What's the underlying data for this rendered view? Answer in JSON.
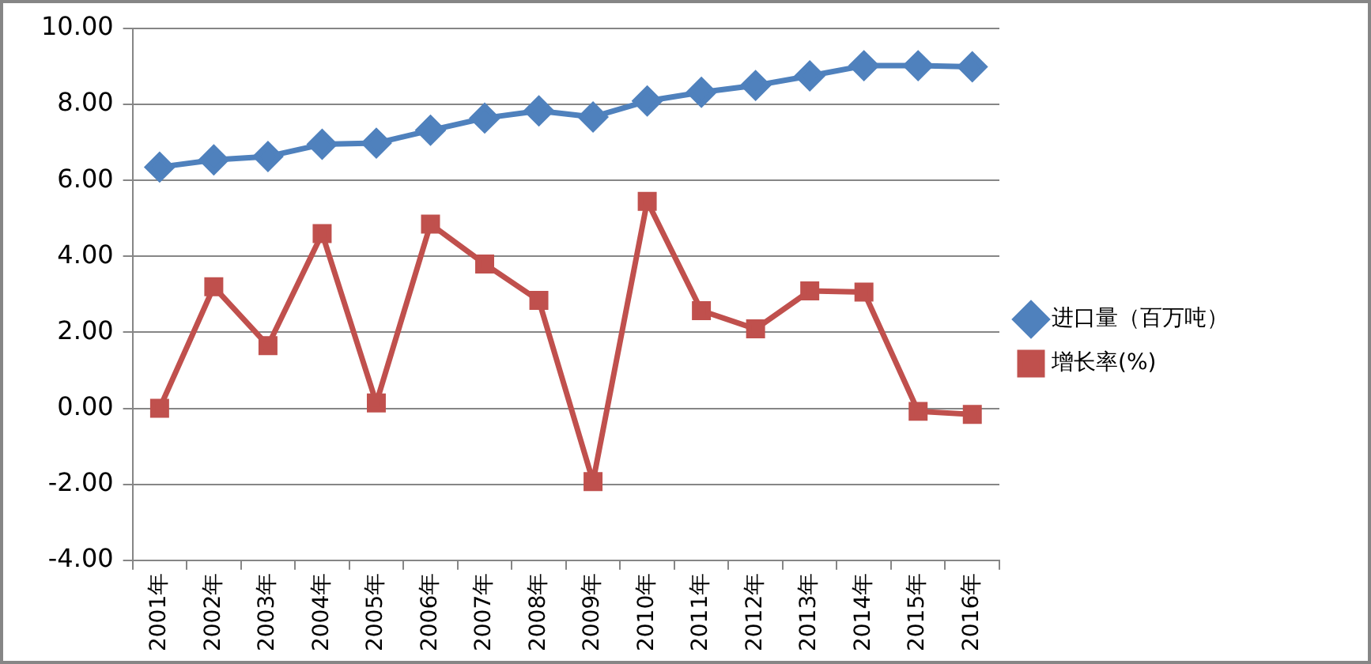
{
  "chart_data": {
    "type": "line",
    "categories": [
      "2001年",
      "2002年",
      "2003年",
      "2004年",
      "2005年",
      "2006年",
      "2007年",
      "2008年",
      "2009年",
      "2010年",
      "2011年",
      "2012年",
      "2013年",
      "2014年",
      "2015年",
      "2016年"
    ],
    "series": [
      {
        "name": "进口量（百万吨）",
        "color": "#4f81bd",
        "marker": "diamond",
        "values": [
          6.35,
          6.54,
          6.63,
          6.95,
          6.98,
          7.32,
          7.64,
          7.83,
          7.67,
          8.09,
          8.32,
          8.5,
          8.75,
          9.02,
          9.02,
          8.99
        ]
      },
      {
        "name": "增长率(%)",
        "color": "#c0504d",
        "marker": "square",
        "values": [
          0.0,
          3.2,
          1.65,
          4.6,
          0.14,
          4.85,
          3.8,
          2.84,
          -1.93,
          5.45,
          2.57,
          2.09,
          3.09,
          3.06,
          -0.08,
          -0.16
        ]
      }
    ],
    "ylim": [
      -4,
      10
    ],
    "yticks": [
      {
        "value": -4,
        "label": "-4.00"
      },
      {
        "value": -2,
        "label": "-2.00"
      },
      {
        "value": 0,
        "label": "0.00"
      },
      {
        "value": 2,
        "label": "2.00"
      },
      {
        "value": 4,
        "label": "4.00"
      },
      {
        "value": 6,
        "label": "6.00"
      },
      {
        "value": 8,
        "label": "8.00"
      },
      {
        "value": 10,
        "label": "10.00"
      }
    ],
    "grid": "y",
    "legend": "right",
    "line_style": "solid"
  }
}
